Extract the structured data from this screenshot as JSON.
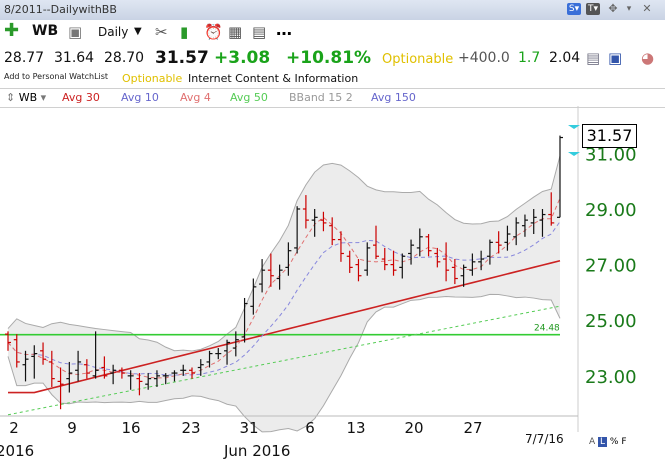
{
  "window": {
    "title": "8/2011--DailywithBB"
  },
  "toolbar": {
    "symbol": "WB",
    "timeframe": "Daily"
  },
  "quote": {
    "open": "28.77",
    "high": "31.64",
    "low": "28.70",
    "last": "31.57",
    "change": "+3.08",
    "pct": "+10.81%",
    "optionable": "Optionable",
    "vol": "+400.0",
    "v2": "1.7",
    "v3": "2.04"
  },
  "subbar": {
    "watchlist": "Add to Personal WatchList",
    "optionable": "Optionable",
    "industry": "Internet Content & Information"
  },
  "legend": [
    {
      "label": "WB",
      "color": "#333333"
    },
    {
      "label": "Avg 30",
      "color": "#cc2222"
    },
    {
      "label": "Avg 10",
      "color": "#6666cc"
    },
    {
      "label": "Avg 4",
      "color": "#e07070"
    },
    {
      "label": "Avg 50",
      "color": "#55cc55"
    },
    {
      "label": "BBand 15 2",
      "color": "#999999"
    },
    {
      "label": "Avg 150",
      "color": "#6666cc"
    }
  ],
  "chart_data": {
    "type": "ohlc",
    "yticks": [
      "23.00",
      "25.00",
      "27.00",
      "29.00",
      "31.00"
    ],
    "ylim": [
      21.7,
      32.2
    ],
    "xticks": [
      "2",
      "9",
      "16",
      "23",
      "31",
      "6",
      "13",
      "20",
      "27"
    ],
    "month_labels": [
      "2016",
      "Jun 2016"
    ],
    "hline": {
      "value": 24.48,
      "label": "24.48"
    },
    "last_label": "31.57",
    "date_label": "7/7/16",
    "bars": [
      [
        24.5,
        24.6,
        23.9,
        24.2
      ],
      [
        24.3,
        24.5,
        23.3,
        23.5
      ],
      [
        23.4,
        23.9,
        22.8,
        23.6
      ],
      [
        23.7,
        24.1,
        22.9,
        23.8
      ],
      [
        23.9,
        24.2,
        23.4,
        23.6
      ],
      [
        23.5,
        23.9,
        22.6,
        22.9
      ],
      [
        22.8,
        23.3,
        21.8,
        22.7
      ],
      [
        22.9,
        23.5,
        22.4,
        23.1
      ],
      [
        23.2,
        23.9,
        22.8,
        23.5
      ],
      [
        23.4,
        23.6,
        22.9,
        23.1
      ],
      [
        23.0,
        24.6,
        22.9,
        23.2
      ],
      [
        23.3,
        23.7,
        22.9,
        23.0
      ],
      [
        23.1,
        23.4,
        22.7,
        23.2
      ],
      [
        23.2,
        23.3,
        22.9,
        23.1
      ],
      [
        23.0,
        23.2,
        22.5,
        23.0
      ],
      [
        22.9,
        23.1,
        22.3,
        22.8
      ],
      [
        22.7,
        23.1,
        22.5,
        22.9
      ],
      [
        22.9,
        23.2,
        22.6,
        23.0
      ],
      [
        23.0,
        23.1,
        22.7,
        23.0
      ],
      [
        23.1,
        23.2,
        22.8,
        23.1
      ],
      [
        23.2,
        23.4,
        23.0,
        23.2
      ],
      [
        23.2,
        23.3,
        22.9,
        23.1
      ],
      [
        23.3,
        23.6,
        23.0,
        23.4
      ],
      [
        23.5,
        23.9,
        23.3,
        23.8
      ],
      [
        23.8,
        24.0,
        23.6,
        23.8
      ],
      [
        23.9,
        24.3,
        23.4,
        24.2
      ],
      [
        24.0,
        24.6,
        23.7,
        24.3
      ],
      [
        24.4,
        25.8,
        24.2,
        25.6
      ],
      [
        25.5,
        26.5,
        25.2,
        26.2
      ],
      [
        26.3,
        27.2,
        26.0,
        26.8
      ],
      [
        26.8,
        27.4,
        26.2,
        26.6
      ],
      [
        26.5,
        27.0,
        26.1,
        26.8
      ],
      [
        26.9,
        27.8,
        26.6,
        27.5
      ],
      [
        27.6,
        29.1,
        27.4,
        29.0
      ],
      [
        29.0,
        29.5,
        28.3,
        28.6
      ],
      [
        28.6,
        29.0,
        28.0,
        28.7
      ],
      [
        28.6,
        28.9,
        28.2,
        28.5
      ],
      [
        28.4,
        28.7,
        27.7,
        27.9
      ],
      [
        27.9,
        28.2,
        27.1,
        27.4
      ],
      [
        27.3,
        27.5,
        26.7,
        26.9
      ],
      [
        27.0,
        27.2,
        26.4,
        26.6
      ],
      [
        26.8,
        27.8,
        26.6,
        27.6
      ],
      [
        27.7,
        28.4,
        27.2,
        27.3
      ],
      [
        27.2,
        27.6,
        26.8,
        27.0
      ],
      [
        27.0,
        27.5,
        26.6,
        26.8
      ],
      [
        26.9,
        27.4,
        26.5,
        27.3
      ],
      [
        27.4,
        27.9,
        27.0,
        27.7
      ],
      [
        27.6,
        28.3,
        27.3,
        28.0
      ],
      [
        28.0,
        28.1,
        27.3,
        27.5
      ],
      [
        27.4,
        27.6,
        26.9,
        27.1
      ],
      [
        27.2,
        27.8,
        26.4,
        26.8
      ],
      [
        26.9,
        27.2,
        26.3,
        26.5
      ],
      [
        26.6,
        27.0,
        26.2,
        26.9
      ],
      [
        26.8,
        27.4,
        26.6,
        27.1
      ],
      [
        27.1,
        27.5,
        26.8,
        27.2
      ],
      [
        27.3,
        27.9,
        27.0,
        27.8
      ],
      [
        27.8,
        28.2,
        27.4,
        27.7
      ],
      [
        27.8,
        28.4,
        27.5,
        28.1
      ],
      [
        28.0,
        28.7,
        27.7,
        28.5
      ],
      [
        28.4,
        28.8,
        28.0,
        28.6
      ],
      [
        28.5,
        29.0,
        28.1,
        28.7
      ],
      [
        28.6,
        29.0,
        28.0,
        28.8
      ],
      [
        28.8,
        29.6,
        28.4,
        28.5
      ],
      [
        28.7,
        31.64,
        28.7,
        31.57
      ]
    ]
  }
}
